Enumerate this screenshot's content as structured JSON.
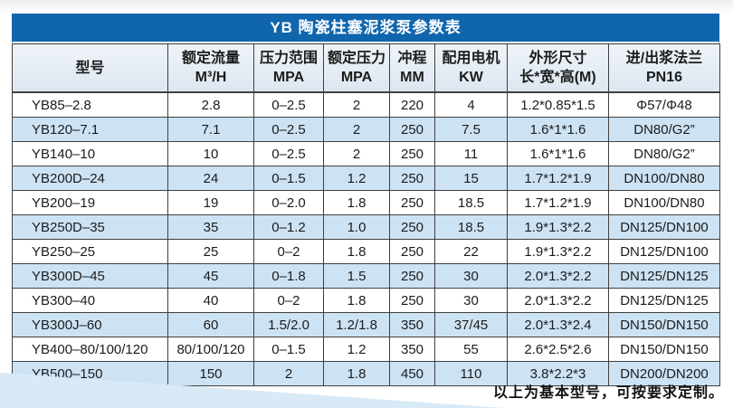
{
  "page": {
    "title": "YB 陶瓷柱塞泥浆泵参数表",
    "footer_note": "以上为基本型号，可按要求定制。"
  },
  "colors": {
    "title-bg": "#1066ad",
    "title-text": "#ffffff",
    "header-bg-top": "#eef3f8",
    "header-bg": "#dde7f1",
    "row-bg": "#ffffff",
    "row-alt-bg": "#cde3f4",
    "border": "#3f3f3f",
    "text": "#1c1c1c",
    "wedge": "#d9eaf7"
  },
  "table": {
    "columns": [
      {
        "line1": "型号",
        "line2": ""
      },
      {
        "line1": "额定流量",
        "line2": "M³/H"
      },
      {
        "line1": "压力范围",
        "line2": "MPA"
      },
      {
        "line1": "额定压力",
        "line2": "MPA"
      },
      {
        "line1": "冲程",
        "line2": "MM"
      },
      {
        "line1": "配用电机",
        "line2": "KW"
      },
      {
        "line1": "外形尺寸",
        "line2": "长*宽*高(M)"
      },
      {
        "line1": "进/出浆法兰",
        "line2": "PN16"
      }
    ],
    "rows": [
      [
        "YB85–2.8",
        "2.8",
        "0–2.5",
        "2",
        "220",
        "4",
        "1.2*0.85*1.5",
        "Φ57/Φ48"
      ],
      [
        "YB120–7.1",
        "7.1",
        "0–2.5",
        "2",
        "250",
        "7.5",
        "1.6*1*1.6",
        "DN80/G2”"
      ],
      [
        "YB140–10",
        "10",
        "0–2.5",
        "2",
        "250",
        "11",
        "1.6*1*1.6",
        "DN80/G2”"
      ],
      [
        "YB200D–24",
        "24",
        "0–1.5",
        "1.2",
        "250",
        "15",
        "1.7*1.2*1.9",
        "DN100/DN80"
      ],
      [
        "YB200–19",
        "19",
        "0–2.0",
        "1.8",
        "250",
        "18.5",
        "1.7*1.2*1.9",
        "DN100/DN80"
      ],
      [
        "YB250D–35",
        "35",
        "0–1.2",
        "1.0",
        "250",
        "18.5",
        "1.9*1.3*2.2",
        "DN125/DN100"
      ],
      [
        "YB250–25",
        "25",
        "0–2",
        "1.8",
        "250",
        "22",
        "1.9*1.3*2.2",
        "DN125/DN100"
      ],
      [
        "YB300D–45",
        "45",
        "0–1.8",
        "1.5",
        "250",
        "30",
        "2.0*1.3*2.2",
        "DN125/DN125"
      ],
      [
        "YB300–40",
        "40",
        "0–2",
        "1.8",
        "250",
        "30",
        "2.0*1.3*2.2",
        "DN125/DN125"
      ],
      [
        "YB300J–60",
        "60",
        "1.5/2.0",
        "1.2/1.8",
        "350",
        "37/45",
        "2.0*1.3*2.4",
        "DN150/DN150"
      ],
      [
        "YB400–80/100/120",
        "80/100/120",
        "0–1.5",
        "1.2",
        "350",
        "55",
        "2.6*2.5*2.6",
        "DN150/DN150"
      ],
      [
        "YB500–150",
        "150",
        "2",
        "1.8",
        "450",
        "110",
        "3.8*2.2*3",
        "DN200/DN200"
      ]
    ]
  }
}
